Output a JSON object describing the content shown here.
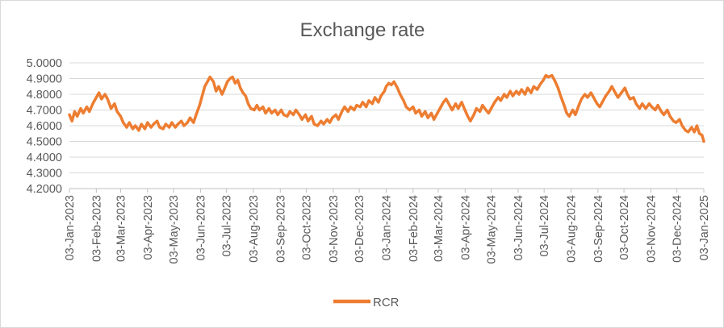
{
  "chart_data": {
    "type": "line",
    "title": "Exchange rate",
    "legend": [
      "RCR"
    ],
    "legend_position": "bottom",
    "grid": "horizontal-only",
    "colors": {
      "series": "#ED7D31",
      "gridline": "#D9D9D9",
      "axis": "#BFBFBF",
      "text": "#595959",
      "background": "#FFFFFF"
    },
    "y_axis": {
      "min": 4.2,
      "max": 5.0,
      "step": 0.1,
      "tick_labels": [
        "5.0000",
        "4.9000",
        "4.8000",
        "4.7000",
        "4.6000",
        "4.5000",
        "4.4000",
        "4.3000",
        "4.2000"
      ]
    },
    "x_axis": {
      "tick_labels": [
        "03-Jan-2023",
        "03-Feb-2023",
        "03-Mar-2023",
        "03-Apr-2023",
        "03-May-2023",
        "03-Jun-2023",
        "03-Jul-2023",
        "03-Aug-2023",
        "03-Sep-2023",
        "03-Oct-2023",
        "03-Nov-2023",
        "03-Dec-2023",
        "03-Jan-2024",
        "03-Feb-2024",
        "03-Mar-2024",
        "03-Apr-2024",
        "03-May-2024",
        "03-Jun-2024",
        "03-Jul-2024",
        "03-Aug-2024",
        "03-Sep-2024",
        "03-Oct-2024",
        "03-Nov-2024",
        "03-Dec-2024",
        "03-Jan-2025"
      ],
      "tick_day_offsets": [
        0,
        31,
        59,
        90,
        120,
        151,
        181,
        212,
        243,
        273,
        304,
        334,
        365,
        396,
        425,
        456,
        486,
        517,
        547,
        578,
        609,
        639,
        670,
        700,
        731
      ]
    },
    "series": [
      {
        "name": "RCR",
        "color": "#ED7D31",
        "points": [
          [
            0,
            4.67
          ],
          [
            3,
            4.63
          ],
          [
            6,
            4.69
          ],
          [
            9,
            4.66
          ],
          [
            13,
            4.71
          ],
          [
            16,
            4.68
          ],
          [
            20,
            4.72
          ],
          [
            23,
            4.69
          ],
          [
            27,
            4.74
          ],
          [
            31,
            4.78
          ],
          [
            34,
            4.81
          ],
          [
            37,
            4.77
          ],
          [
            41,
            4.8
          ],
          [
            44,
            4.77
          ],
          [
            48,
            4.71
          ],
          [
            52,
            4.74
          ],
          [
            55,
            4.69
          ],
          [
            59,
            4.66
          ],
          [
            62,
            4.62
          ],
          [
            66,
            4.59
          ],
          [
            69,
            4.62
          ],
          [
            73,
            4.58
          ],
          [
            76,
            4.6
          ],
          [
            80,
            4.57
          ],
          [
            83,
            4.61
          ],
          [
            87,
            4.58
          ],
          [
            90,
            4.62
          ],
          [
            94,
            4.59
          ],
          [
            97,
            4.61
          ],
          [
            101,
            4.63
          ],
          [
            104,
            4.59
          ],
          [
            108,
            4.58
          ],
          [
            111,
            4.61
          ],
          [
            115,
            4.59
          ],
          [
            118,
            4.62
          ],
          [
            122,
            4.59
          ],
          [
            125,
            4.61
          ],
          [
            129,
            4.63
          ],
          [
            132,
            4.6
          ],
          [
            136,
            4.62
          ],
          [
            139,
            4.65
          ],
          [
            143,
            4.62
          ],
          [
            146,
            4.67
          ],
          [
            150,
            4.73
          ],
          [
            153,
            4.79
          ],
          [
            156,
            4.85
          ],
          [
            159,
            4.88
          ],
          [
            162,
            4.91
          ],
          [
            166,
            4.88
          ],
          [
            169,
            4.82
          ],
          [
            172,
            4.85
          ],
          [
            176,
            4.8
          ],
          [
            179,
            4.84
          ],
          [
            182,
            4.88
          ],
          [
            185,
            4.9
          ],
          [
            188,
            4.91
          ],
          [
            191,
            4.87
          ],
          [
            194,
            4.89
          ],
          [
            197,
            4.84
          ],
          [
            200,
            4.81
          ],
          [
            203,
            4.79
          ],
          [
            206,
            4.74
          ],
          [
            209,
            4.71
          ],
          [
            213,
            4.7
          ],
          [
            216,
            4.73
          ],
          [
            219,
            4.7
          ],
          [
            223,
            4.72
          ],
          [
            226,
            4.68
          ],
          [
            230,
            4.71
          ],
          [
            233,
            4.68
          ],
          [
            237,
            4.7
          ],
          [
            240,
            4.67
          ],
          [
            244,
            4.7
          ],
          [
            247,
            4.67
          ],
          [
            251,
            4.66
          ],
          [
            254,
            4.69
          ],
          [
            258,
            4.67
          ],
          [
            261,
            4.7
          ],
          [
            265,
            4.67
          ],
          [
            268,
            4.64
          ],
          [
            272,
            4.67
          ],
          [
            275,
            4.63
          ],
          [
            279,
            4.66
          ],
          [
            282,
            4.61
          ],
          [
            286,
            4.6
          ],
          [
            290,
            4.63
          ],
          [
            293,
            4.61
          ],
          [
            297,
            4.64
          ],
          [
            300,
            4.62
          ],
          [
            303,
            4.65
          ],
          [
            307,
            4.67
          ],
          [
            310,
            4.64
          ],
          [
            314,
            4.69
          ],
          [
            317,
            4.72
          ],
          [
            321,
            4.69
          ],
          [
            324,
            4.72
          ],
          [
            328,
            4.7
          ],
          [
            331,
            4.73
          ],
          [
            335,
            4.72
          ],
          [
            338,
            4.75
          ],
          [
            342,
            4.72
          ],
          [
            345,
            4.76
          ],
          [
            349,
            4.74
          ],
          [
            352,
            4.78
          ],
          [
            356,
            4.75
          ],
          [
            359,
            4.79
          ],
          [
            363,
            4.82
          ],
          [
            365,
            4.85
          ],
          [
            368,
            4.87
          ],
          [
            371,
            4.86
          ],
          [
            374,
            4.88
          ],
          [
            378,
            4.84
          ],
          [
            381,
            4.8
          ],
          [
            385,
            4.76
          ],
          [
            388,
            4.72
          ],
          [
            392,
            4.7
          ],
          [
            396,
            4.72
          ],
          [
            399,
            4.68
          ],
          [
            403,
            4.7
          ],
          [
            406,
            4.66
          ],
          [
            410,
            4.69
          ],
          [
            413,
            4.65
          ],
          [
            417,
            4.68
          ],
          [
            420,
            4.64
          ],
          [
            424,
            4.68
          ],
          [
            428,
            4.72
          ],
          [
            431,
            4.75
          ],
          [
            434,
            4.77
          ],
          [
            438,
            4.73
          ],
          [
            441,
            4.7
          ],
          [
            445,
            4.74
          ],
          [
            448,
            4.71
          ],
          [
            452,
            4.75
          ],
          [
            455,
            4.71
          ],
          [
            459,
            4.66
          ],
          [
            462,
            4.63
          ],
          [
            466,
            4.67
          ],
          [
            469,
            4.71
          ],
          [
            473,
            4.69
          ],
          [
            476,
            4.73
          ],
          [
            480,
            4.7
          ],
          [
            483,
            4.68
          ],
          [
            487,
            4.72
          ],
          [
            490,
            4.75
          ],
          [
            494,
            4.78
          ],
          [
            497,
            4.76
          ],
          [
            501,
            4.8
          ],
          [
            504,
            4.78
          ],
          [
            508,
            4.82
          ],
          [
            511,
            4.79
          ],
          [
            515,
            4.82
          ],
          [
            518,
            4.8
          ],
          [
            521,
            4.83
          ],
          [
            525,
            4.8
          ],
          [
            528,
            4.84
          ],
          [
            532,
            4.81
          ],
          [
            535,
            4.85
          ],
          [
            539,
            4.83
          ],
          [
            542,
            4.86
          ],
          [
            546,
            4.89
          ],
          [
            549,
            4.92
          ],
          [
            552,
            4.91
          ],
          [
            556,
            4.92
          ],
          [
            559,
            4.89
          ],
          [
            563,
            4.84
          ],
          [
            566,
            4.79
          ],
          [
            570,
            4.73
          ],
          [
            573,
            4.68
          ],
          [
            576,
            4.66
          ],
          [
            580,
            4.7
          ],
          [
            583,
            4.67
          ],
          [
            587,
            4.73
          ],
          [
            590,
            4.77
          ],
          [
            594,
            4.8
          ],
          [
            597,
            4.78
          ],
          [
            601,
            4.81
          ],
          [
            604,
            4.78
          ],
          [
            608,
            4.74
          ],
          [
            611,
            4.72
          ],
          [
            615,
            4.76
          ],
          [
            618,
            4.79
          ],
          [
            622,
            4.82
          ],
          [
            625,
            4.85
          ],
          [
            629,
            4.81
          ],
          [
            632,
            4.78
          ],
          [
            636,
            4.81
          ],
          [
            640,
            4.84
          ],
          [
            643,
            4.8
          ],
          [
            646,
            4.77
          ],
          [
            650,
            4.78
          ],
          [
            653,
            4.74
          ],
          [
            657,
            4.71
          ],
          [
            660,
            4.74
          ],
          [
            664,
            4.71
          ],
          [
            668,
            4.74
          ],
          [
            671,
            4.72
          ],
          [
            675,
            4.7
          ],
          [
            678,
            4.73
          ],
          [
            682,
            4.69
          ],
          [
            685,
            4.67
          ],
          [
            689,
            4.7
          ],
          [
            692,
            4.66
          ],
          [
            696,
            4.63
          ],
          [
            699,
            4.62
          ],
          [
            703,
            4.64
          ],
          [
            706,
            4.6
          ],
          [
            710,
            4.57
          ],
          [
            713,
            4.56
          ],
          [
            717,
            4.59
          ],
          [
            720,
            4.56
          ],
          [
            723,
            4.6
          ],
          [
            726,
            4.55
          ],
          [
            729,
            4.54
          ],
          [
            731,
            4.5
          ]
        ]
      }
    ]
  }
}
